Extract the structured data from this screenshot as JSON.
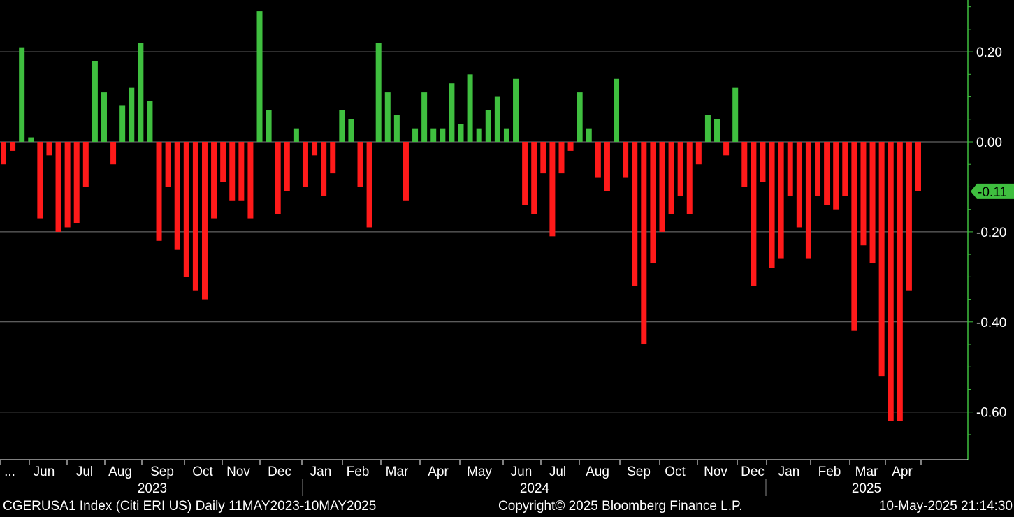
{
  "chart_data": {
    "type": "bar",
    "ylim": [
      -0.7,
      0.31
    ],
    "yticks": [
      0.2,
      0.0,
      -0.2,
      -0.4,
      -0.6
    ],
    "ytick_labels": [
      "0.20",
      "0.00",
      "-0.20",
      "-0.40",
      "-0.60"
    ],
    "grid": true,
    "positive_color": "#3fbf3f",
    "negative_color": "#ff1a1a",
    "last_value": -0.11,
    "last_value_label": "-0.11",
    "months": [
      "...",
      "Jun",
      "Jul",
      "Aug",
      "Sep",
      "Oct",
      "Nov",
      "Dec",
      "Jan",
      "Feb",
      "Mar",
      "Apr",
      "May",
      "Jun",
      "Jul",
      "Aug",
      "Sep",
      "Oct",
      "Nov",
      "Dec",
      "Jan",
      "Feb",
      "Mar",
      "Apr"
    ],
    "years": [
      "2023",
      "2024",
      "2025"
    ],
    "values": [
      -0.05,
      -0.02,
      0.21,
      0.01,
      -0.17,
      -0.03,
      -0.2,
      -0.19,
      -0.18,
      -0.1,
      0.18,
      0.11,
      -0.05,
      0.08,
      0.12,
      0.22,
      0.09,
      -0.22,
      -0.1,
      -0.24,
      -0.3,
      -0.33,
      -0.35,
      -0.17,
      -0.09,
      -0.13,
      -0.13,
      -0.17,
      0.29,
      0.07,
      -0.16,
      -0.11,
      0.03,
      -0.1,
      -0.03,
      -0.12,
      -0.07,
      0.07,
      0.05,
      -0.1,
      -0.19,
      0.22,
      0.11,
      0.06,
      -0.13,
      0.03,
      0.11,
      0.03,
      0.03,
      0.13,
      0.04,
      0.15,
      0.03,
      0.07,
      0.1,
      0.03,
      0.14,
      -0.14,
      -0.16,
      -0.07,
      -0.21,
      -0.07,
      -0.02,
      0.11,
      0.03,
      -0.08,
      -0.11,
      0.14,
      -0.08,
      -0.32,
      -0.45,
      -0.27,
      -0.2,
      -0.16,
      -0.12,
      -0.16,
      -0.05,
      0.06,
      0.05,
      -0.03,
      0.12,
      -0.1,
      -0.32,
      -0.09,
      -0.28,
      -0.26,
      -0.12,
      -0.19,
      -0.26,
      -0.12,
      -0.14,
      -0.15,
      -0.12,
      -0.42,
      -0.23,
      -0.27,
      -0.52,
      -0.62,
      -0.62,
      -0.33,
      -0.11
    ]
  },
  "footer": {
    "left": "CGERUSA1 Index (Citi ERI US)  Daily 11MAY2023-10MAY2025",
    "center": "Copyright© 2025 Bloomberg Finance L.P.",
    "right": "10-May-2025 21:14:30"
  }
}
